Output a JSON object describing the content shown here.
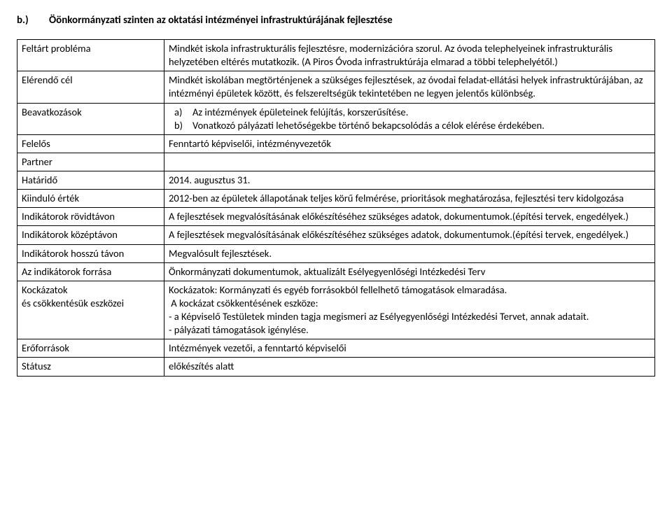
{
  "heading": {
    "tag": "b.)",
    "text": "Öönkormányzati szinten az oktatási intézményei infrastruktúrájának fejlesztése"
  },
  "rows": {
    "feltart_problema": {
      "label": "Feltárt probléma",
      "value": "Mindkét iskola infrastrukturális fejlesztésre, modernizációra szorul. Az óvoda telephelyeinek infrastrukturális helyzetében eltérés mutatkozik. (A Piros Óvoda infrastruktúrája elmarad a többi telephelyétől.)"
    },
    "elerendo_cel": {
      "label": "Elérendő cél",
      "value": "Mindkét iskolában megtörténjenek a szükséges fejlesztések, az óvodai  feladat-ellátási helyek infrastruktúrájában, az intézményi  épületek között, és felszereltségük tekintetében  ne legyen jelentős különbség."
    },
    "beavatkozasok": {
      "label": "Beavatkozások",
      "items": [
        {
          "marker": "a)",
          "text": "Az intézmények épületeinek felújítás, korszerűsítése."
        },
        {
          "marker": "b)",
          "text": "Vonatkozó pályázati lehetőségekbe történő bekapcsolódás a célok elérése érdekében."
        }
      ]
    },
    "felelos": {
      "label": "Felelős",
      "value": "Fenntartó képviselői, intézményvezetők"
    },
    "partner": {
      "label": "Partner",
      "value": ""
    },
    "hatarido": {
      "label": "Határidő",
      "value": "2014. augusztus 31."
    },
    "kiindulo_ertek": {
      "label": "Kiinduló érték",
      "value": "2012-ben az épületek állapotának teljes körű felmérése, prioritások meghatározása, fejlesztési terv kidolgozása"
    },
    "indikatorok_rovidtavon": {
      "label": "Indikátorok rövidtávon",
      "value": "A fejlesztések megvalósításának előkészítéséhez szükséges adatok, dokumentumok.(építési tervek, engedélyek.)"
    },
    "indikatorok_kozeptavon": {
      "label": "Indikátorok középtávon",
      "value": "A fejlesztések megvalósításának előkészítéséhez szükséges adatok, dokumentumok.(építési tervek, engedélyek.)"
    },
    "indikatorok_hosszu_tavon": {
      "label": "Indikátorok hosszú távon",
      "value": "Megvalósult fejlesztések."
    },
    "az_indikatorok_forrasa": {
      "label": "Az indikátorok forrása",
      "value": " Önkormányzati dokumentumok, aktualizált Esélyegyenlőségi Intézkedési Terv"
    },
    "kockazatok": {
      "label": "Kockázatok\nés csökkentésük eszközei",
      "value": "Kockázatok: Kormányzati és egyéb forrásokból fellelhető támogatások elmaradása.\n A kockázat csökkentésének eszköze:\n- a Képviselő Testületek minden tagja megismeri az Esélyegyenlőségi Intézkedési Tervet, annak adatait.\n- pályázati támogatások igénylése."
    },
    "eroforrasok": {
      "label": "Erőforrások",
      "value": "Intézmények vezetői, a fenntartó képviselői"
    },
    "statusz": {
      "label": "Státusz",
      "value": "előkészítés alatt"
    }
  }
}
